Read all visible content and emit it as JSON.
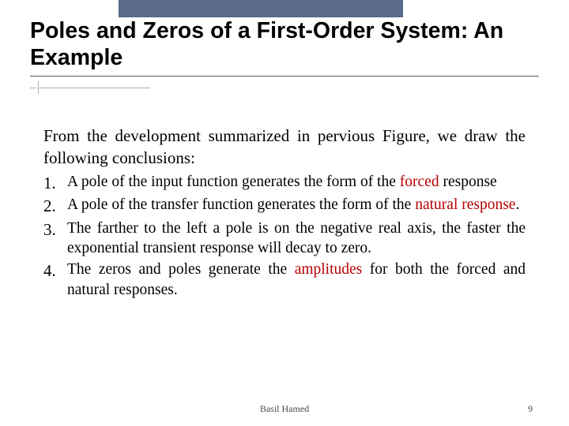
{
  "colors": {
    "top_bar": "#596a8a",
    "rule": "#595959",
    "dot_line": "#b0b0b0",
    "text": "#000000",
    "highlight": "#b80000",
    "footer": "#4a4a4a",
    "background": "#ffffff"
  },
  "title": "Poles and Zeros of a First-Order System: An Example",
  "intro": "From the development summarized in pervious Figure, we draw the following conclusions:",
  "items": [
    {
      "num": "1.",
      "pre": "A pole of the input function generates the form of the ",
      "highlight": "forced",
      "post": " response"
    },
    {
      "num": "2.",
      "pre": "A pole of the transfer function generates the form of the ",
      "highlight": "natural response",
      "post": "."
    },
    {
      "num": "3.",
      "pre": "The farther to the left a pole is on the negative real axis, the faster the exponential transient response will decay to zero.",
      "highlight": "",
      "post": ""
    },
    {
      "num": "4.",
      "pre": "The zeros and poles generate the ",
      "highlight": "amplitudes",
      "post": " for both the forced and natural responses."
    }
  ],
  "footer": {
    "author": "Basil Hamed",
    "page": "9"
  }
}
